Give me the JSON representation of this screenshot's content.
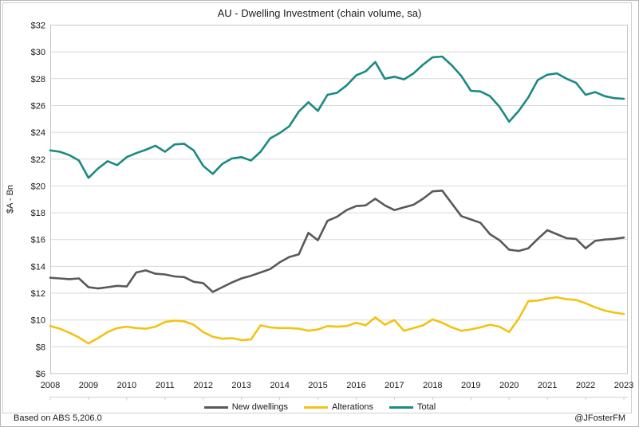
{
  "page": {
    "background": "#ffffff",
    "frame_border_color": "#cfcfcf"
  },
  "header": {
    "title": "AU - Dwelling Investment (chain volume, sa)"
  },
  "footer": {
    "left": "Based on ABS 5,206.0",
    "right": "@JFosterFM"
  },
  "colors": {
    "new_dwellings": "#595959",
    "alterations": "#F2C314",
    "total": "#1A8A82",
    "gridline": "#D9D9D9",
    "plot_border": "#C6C6C6",
    "tick_line": "#D0D0D0",
    "label_text": "#1a1a1a"
  },
  "chart_data": {
    "type": "line",
    "title": "AU - Dwelling Investment (chain volume, sa)",
    "xlabel": "",
    "ylabel": "$A - Bn",
    "ylim": [
      6,
      32
    ],
    "ytick_step": 2,
    "y_tick_labels": [
      "$32",
      "$30",
      "$28",
      "$26",
      "$24",
      "$22",
      "$20",
      "$18",
      "$16",
      "$14",
      "$12",
      "$10",
      "$8",
      "$6"
    ],
    "x_tick_labels": [
      "2008",
      "2009",
      "2010",
      "2011",
      "2012",
      "2013",
      "2014",
      "2015",
      "2016",
      "2017",
      "2018",
      "2019",
      "2020",
      "2021",
      "2022",
      "2023"
    ],
    "x_start_year": 2008,
    "points_per_year": 4,
    "frequency": "quarterly",
    "grid": true,
    "legend_position": "bottom",
    "series": [
      {
        "name": "New dwellings",
        "color": "#595959",
        "values": [
          13.15,
          13.1,
          13.05,
          13.1,
          12.45,
          12.35,
          12.45,
          12.55,
          12.5,
          13.55,
          13.7,
          13.45,
          13.4,
          13.25,
          13.2,
          12.85,
          12.75,
          12.1,
          12.45,
          12.8,
          13.1,
          13.3,
          13.55,
          13.8,
          14.3,
          14.7,
          14.9,
          16.5,
          15.95,
          17.4,
          17.7,
          18.2,
          18.5,
          18.55,
          19.05,
          18.55,
          18.2,
          18.4,
          18.6,
          19.05,
          19.6,
          19.65,
          18.7,
          17.75,
          17.5,
          17.25,
          16.4,
          15.95,
          15.25,
          15.15,
          15.35,
          16.05,
          16.7,
          16.4,
          16.1,
          16.05,
          15.35,
          15.9,
          16.0,
          16.05,
          16.15
        ]
      },
      {
        "name": "Alterations",
        "color": "#F2C314",
        "values": [
          9.55,
          9.35,
          9.05,
          8.7,
          8.25,
          8.65,
          9.1,
          9.4,
          9.5,
          9.4,
          9.35,
          9.5,
          9.85,
          9.95,
          9.9,
          9.65,
          9.1,
          8.75,
          8.6,
          8.65,
          8.5,
          8.55,
          9.6,
          9.45,
          9.4,
          9.4,
          9.35,
          9.2,
          9.3,
          9.55,
          9.5,
          9.55,
          9.8,
          9.6,
          10.2,
          9.65,
          10.0,
          9.2,
          9.4,
          9.6,
          10.05,
          9.8,
          9.45,
          9.2,
          9.3,
          9.45,
          9.65,
          9.5,
          9.1,
          10.1,
          11.4,
          11.45,
          11.6,
          11.7,
          11.55,
          11.5,
          11.25,
          10.95,
          10.7,
          10.55,
          10.45
        ]
      },
      {
        "name": "Total",
        "color": "#1A8A82",
        "values": [
          22.65,
          22.55,
          22.3,
          21.9,
          20.6,
          21.3,
          21.85,
          21.55,
          22.15,
          22.45,
          22.7,
          23.0,
          22.55,
          23.1,
          23.15,
          22.65,
          21.5,
          20.9,
          21.65,
          22.05,
          22.15,
          21.9,
          22.55,
          23.55,
          23.95,
          24.45,
          25.55,
          26.25,
          25.6,
          26.8,
          26.95,
          27.5,
          28.25,
          28.55,
          29.25,
          28.0,
          28.15,
          27.95,
          28.4,
          29.05,
          29.6,
          29.65,
          29.0,
          28.2,
          27.1,
          27.05,
          26.7,
          25.9,
          24.8,
          25.6,
          26.6,
          27.9,
          28.3,
          28.4,
          28.0,
          27.7,
          26.8,
          27.0,
          26.7,
          26.55,
          26.5
        ]
      }
    ]
  }
}
